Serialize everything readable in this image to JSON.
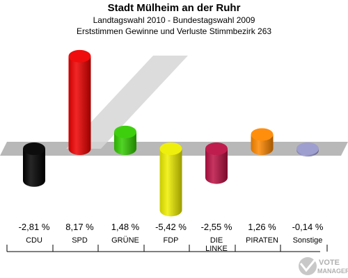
{
  "header": {
    "title": "Stadt Mülheim an der Ruhr",
    "subtitle": "Landtagswahl 2010 - Bundestagswahl 2009",
    "subtitle2": "Erststimmen Gewinne und Verluste Stimmbezirk 263"
  },
  "watermark": {
    "text": "VOTE MANAGER"
  },
  "chart_data": {
    "type": "bar",
    "title": "Stadt Mülheim an der Ruhr",
    "subtitle": "Landtagswahl 2010 - Bundestagswahl 2009 / Erststimmen Gewinne und Verluste Stimmbezirk 263",
    "categories": [
      "CDU",
      "SPD",
      "GRÜNE",
      "FDP",
      "DIE LINKE",
      "PIRATEN",
      "Sonstige"
    ],
    "values": [
      -2.81,
      8.17,
      1.48,
      -5.42,
      -2.55,
      1.26,
      -0.14
    ],
    "value_labels": [
      "-2,81 %",
      "8,17 %",
      "1,48 %",
      "-5,42 %",
      "-2,55 %",
      "1,26 %",
      "-0,14 %"
    ],
    "colors": [
      "#000000",
      "#ee0000",
      "#33cc00",
      "#eeee00",
      "#bb1144",
      "#ff8800",
      "#9999cc"
    ],
    "ylim": [
      -5.42,
      8.17
    ],
    "grid": false,
    "legend": "none"
  }
}
